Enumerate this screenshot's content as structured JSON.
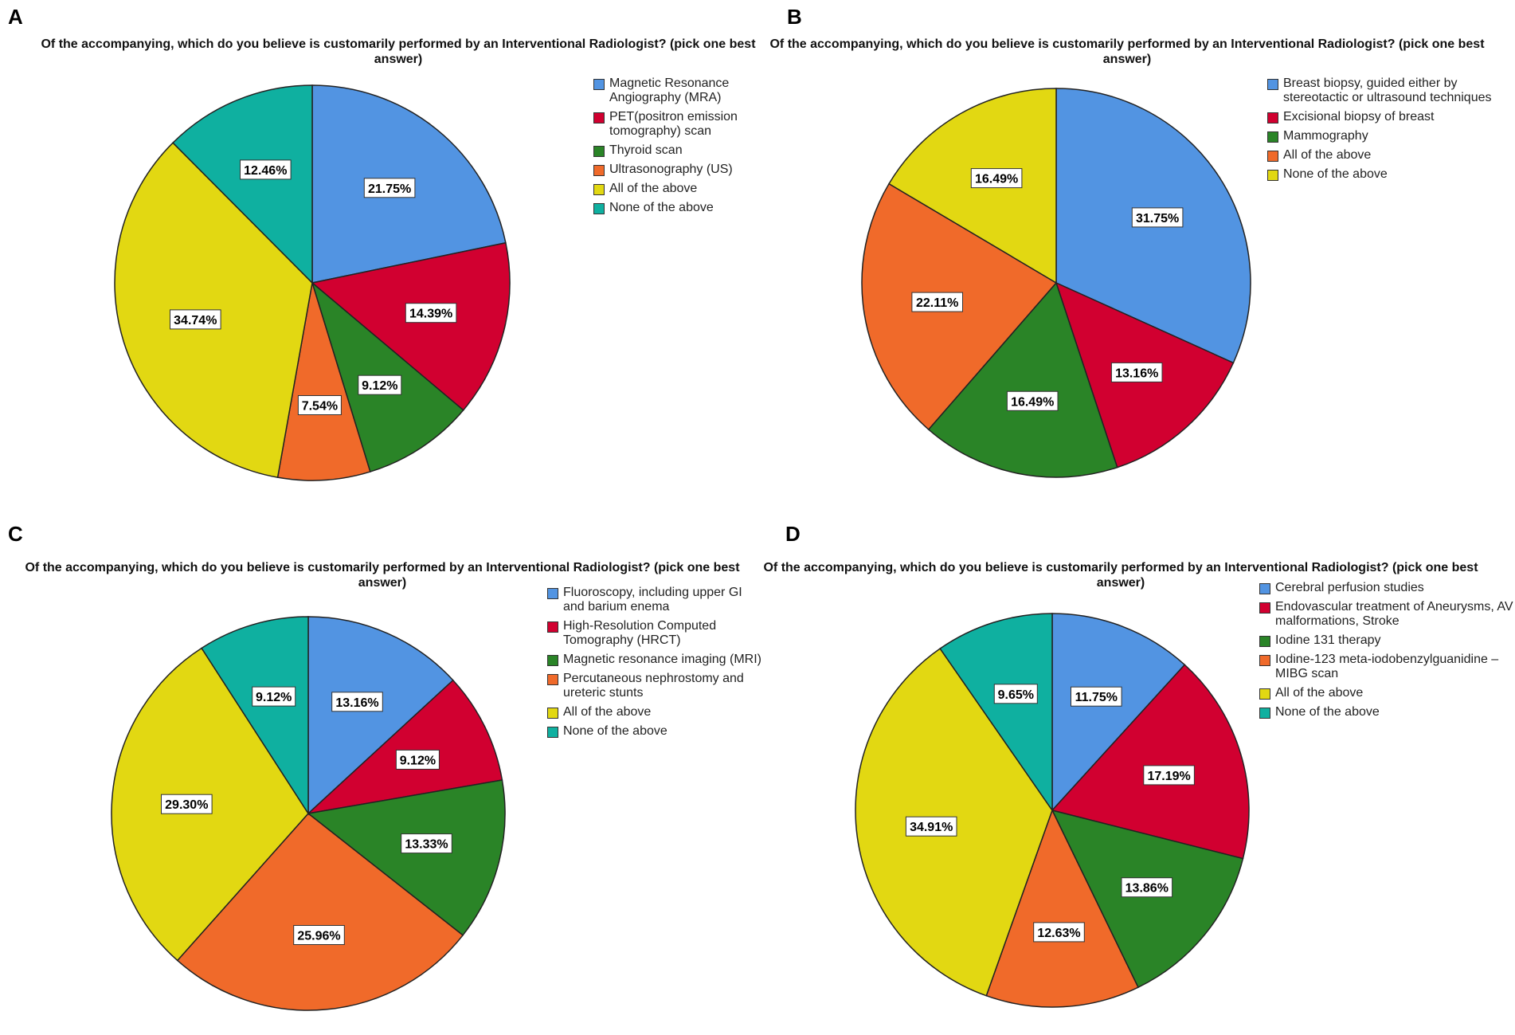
{
  "colors": {
    "blue": "#5294E2",
    "red": "#D10030",
    "green": "#2A8427",
    "orange": "#F06A2A",
    "yellow": "#E2D812",
    "teal": "#0FB0A0"
  },
  "chart_data": [
    {
      "type": "pie",
      "panel": "A",
      "title": "Of the accompanying, which do you believe is customarily performed by an Interventional Radiologist? (pick one best answer)",
      "labels": [
        "Magnetic Resonance Angiography (MRA)",
        "PET(positron emission tomography) scan",
        "Thyroid scan",
        "Ultrasonography (US)",
        "All of the above",
        "None of the above"
      ],
      "values": [
        21.75,
        14.39,
        9.12,
        7.54,
        34.74,
        12.46
      ],
      "value_labels": [
        "21.75%",
        "14.39%",
        "9.12%",
        "7.54%",
        "34.74%",
        "12.46%"
      ],
      "colors": [
        "#5294E2",
        "#D10030",
        "#2A8427",
        "#F06A2A",
        "#E2D812",
        "#0FB0A0"
      ]
    },
    {
      "type": "pie",
      "panel": "B",
      "title": "Of the accompanying, which do you believe is customarily performed by an Interventional Radiologist? (pick one best answer)",
      "labels": [
        "Breast biopsy, guided either by stereotactic or ultrasound techniques",
        "Excisional biopsy of breast",
        "Mammography",
        "All of the above",
        "None of the above"
      ],
      "values": [
        31.75,
        13.16,
        16.49,
        22.11,
        16.49
      ],
      "value_labels": [
        "31.75%",
        "13.16%",
        "16.49%",
        "22.11%",
        "16.49%"
      ],
      "colors": [
        "#5294E2",
        "#D10030",
        "#2A8427",
        "#F06A2A",
        "#E2D812"
      ]
    },
    {
      "type": "pie",
      "panel": "C",
      "title": "Of the accompanying, which do you believe is customarily performed by an Interventional Radiologist? (pick one best answer)",
      "labels": [
        "Fluoroscopy, including upper GI and barium enema",
        "High-Resolution Computed Tomography (HRCT)",
        "Magnetic resonance imaging (MRI)",
        "Percutaneous nephrostomy and ureteric stunts",
        "All of the above",
        "None of the above"
      ],
      "values": [
        13.16,
        9.12,
        13.33,
        25.96,
        29.3,
        9.12
      ],
      "value_labels": [
        "13.16%",
        "9.12%",
        "13.33%",
        "25.96%",
        "29.30%",
        "9.12%"
      ],
      "colors": [
        "#5294E2",
        "#D10030",
        "#2A8427",
        "#F06A2A",
        "#E2D812",
        "#0FB0A0"
      ]
    },
    {
      "type": "pie",
      "panel": "D",
      "title": "Of the accompanying, which do you believe is customarily performed by an Interventional Radiologist? (pick one best answer)",
      "labels": [
        "Cerebral perfusion studies",
        "Endovascular treatment of Aneurysms, AV malformations, Stroke",
        "Iodine 131 therapy",
        "Iodine-123 meta-iodobenzylguanidine – MIBG scan",
        "All of the above",
        "None of the above"
      ],
      "values": [
        11.75,
        17.19,
        13.86,
        12.63,
        34.91,
        9.65
      ],
      "value_labels": [
        "11.75%",
        "17.19%",
        "13.86%",
        "12.63%",
        "34.91%",
        "9.65%"
      ],
      "colors": [
        "#5294E2",
        "#D10030",
        "#2A8427",
        "#F06A2A",
        "#E2D812",
        "#0FB0A0"
      ]
    }
  ]
}
